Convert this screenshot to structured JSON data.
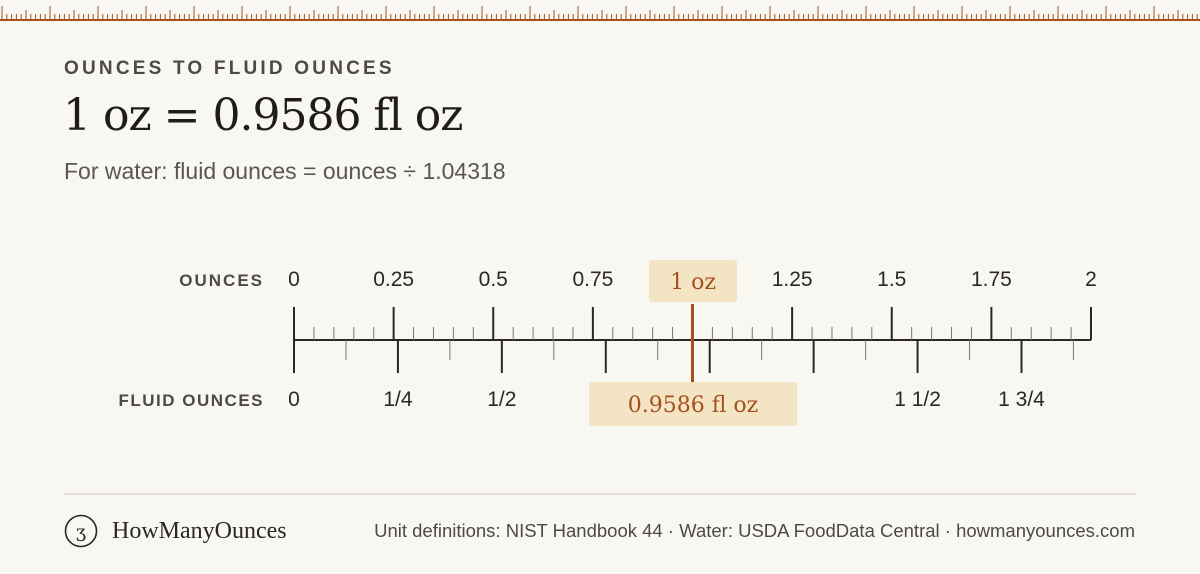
{
  "header": {
    "eyebrow": "OUNCES TO FLUID OUNCES",
    "headline": "1 oz = 0.9586 fl oz",
    "formula": "For water: fluid ounces = ounces ÷ 1.04318"
  },
  "scale": {
    "top_label": "OUNCES",
    "bottom_label": "FLUID OUNCES",
    "top_ticks": [
      {
        "value": 0,
        "label": "0"
      },
      {
        "value": 0.25,
        "label": "0.25"
      },
      {
        "value": 0.5,
        "label": "0.5"
      },
      {
        "value": 0.75,
        "label": "0.75"
      },
      {
        "value": 1.25,
        "label": "1.25"
      },
      {
        "value": 1.5,
        "label": "1.5"
      },
      {
        "value": 1.75,
        "label": "1.75"
      },
      {
        "value": 2,
        "label": "2"
      }
    ],
    "bottom_ticks": [
      {
        "value": 0,
        "label": "0"
      },
      {
        "value": 0.25,
        "label": "1/4"
      },
      {
        "value": 0.5,
        "label": "1/2"
      },
      {
        "value": 1.5,
        "label": "1 1/2"
      },
      {
        "value": 1.75,
        "label": "1 3/4"
      }
    ],
    "marker_oz": 1,
    "marker_label_top": "1 oz",
    "marker_label_bottom": "0.9586 fl oz",
    "oz_max": 2,
    "ratio": 1.04318,
    "colors": {
      "accent": "#a6501f",
      "highlight": "#f3e4c3",
      "ink": "#2b2824",
      "minor": "#7a766f"
    }
  },
  "footer": {
    "brand": "HowManyOunces",
    "sources": "Unit definitions: NIST Handbook 44 · Water: USDA FoodData Central · howmanyounces.com"
  }
}
